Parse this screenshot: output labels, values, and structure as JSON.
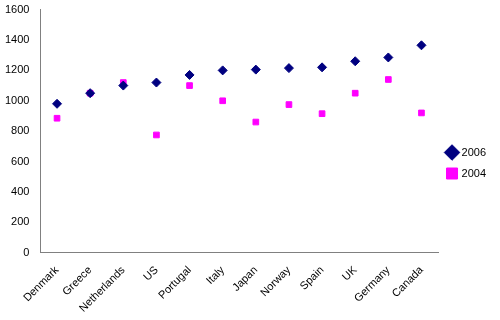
{
  "chart_data": {
    "type": "scatter",
    "categories": [
      "Denmark",
      "Greece",
      "Netherlands",
      "US",
      "Portugal",
      "Italy",
      "Japan",
      "Norway",
      "Spain",
      "UK",
      "Germany",
      "Canada"
    ],
    "series": [
      {
        "name": "2006",
        "color": "#000080",
        "marker": "diamond",
        "values": [
          980,
          1050,
          1100,
          1120,
          1170,
          1200,
          1205,
          1215,
          1220,
          1260,
          1285,
          1365
        ]
      },
      {
        "name": "2004",
        "color": "#ff00ff",
        "marker": "square",
        "values": [
          885,
          1050,
          1120,
          775,
          1100,
          1000,
          860,
          975,
          915,
          1050,
          1140,
          920
        ]
      }
    ],
    "ylim": [
      0,
      1600
    ],
    "yticks": [
      0,
      200,
      400,
      600,
      800,
      1000,
      1200,
      1400,
      1600
    ],
    "grid": false,
    "legend": "right"
  }
}
